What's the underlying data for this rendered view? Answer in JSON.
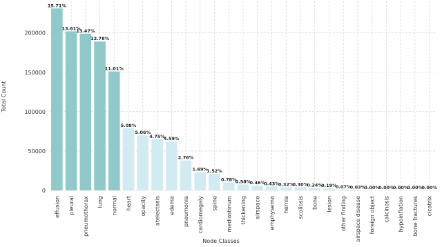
{
  "chart_data": {
    "type": "bar",
    "x_label": "Node Classes",
    "y_label": "Total Count",
    "categories": [
      "effusion",
      "pleural",
      "pneumothorax",
      "lung",
      "normal",
      "heart",
      "opacity",
      "atelectasis",
      "edema",
      "pneumonia",
      "cardiomegaly",
      "spine",
      "mediastinum",
      "thickening",
      "airspace",
      "emphysema",
      "hernia",
      "scoliosis",
      "bone",
      "lesion",
      "other finding",
      "airspace disease",
      "foreign object",
      "calcinosis",
      "hypoinflation",
      "bone fractures",
      "cicatrix"
    ],
    "values": [
      231000,
      202000,
      199000,
      189000,
      151000,
      79000,
      70000,
      65000,
      62000,
      38000,
      23000,
      21000,
      10000,
      7500,
      6000,
      5000,
      4000,
      4000,
      3000,
      2500,
      1000,
      400,
      50,
      50,
      50,
      50,
      50
    ],
    "bar_labels": [
      "15.71%",
      "13.61%",
      "13.47%",
      "12.78%",
      "11.01%",
      "5.08%",
      "5.06%",
      "4.75%",
      "4.59%",
      "2.76%",
      "1.69%",
      "1.52%",
      "0.78%",
      "0.58%",
      "0.46%",
      "0.43%",
      "0.32%",
      "0.30%",
      "0.24%",
      "0.19%",
      "0.07%",
      "0.03%",
      "0.00%",
      "0.00%",
      "0.00%",
      "0.00%",
      "0.00%"
    ],
    "colors": [
      "#8fc9c9",
      "#8fc9c9",
      "#8fc9c9",
      "#8fc9c9",
      "#8fc9c9",
      "#d2eaf1",
      "#d2eaf1",
      "#d2eaf1",
      "#d2eaf1",
      "#d2eaf1",
      "#d2eaf1",
      "#d2eaf1",
      "#d2eaf1",
      "#d2eaf1",
      "#d2eaf1",
      "#d2eaf1",
      "#d2eaf1",
      "#d2eaf1",
      "#d2eaf1",
      "#d2eaf1",
      "#d2eaf1",
      "#d2eaf1",
      "#d2eaf1",
      "#d2eaf1",
      "#d2eaf1",
      "#d2eaf1",
      "#d2eaf1"
    ],
    "ylim": [
      0,
      240000
    ],
    "yticks": [
      0,
      50000,
      100000,
      150000,
      200000
    ],
    "grid": true
  }
}
